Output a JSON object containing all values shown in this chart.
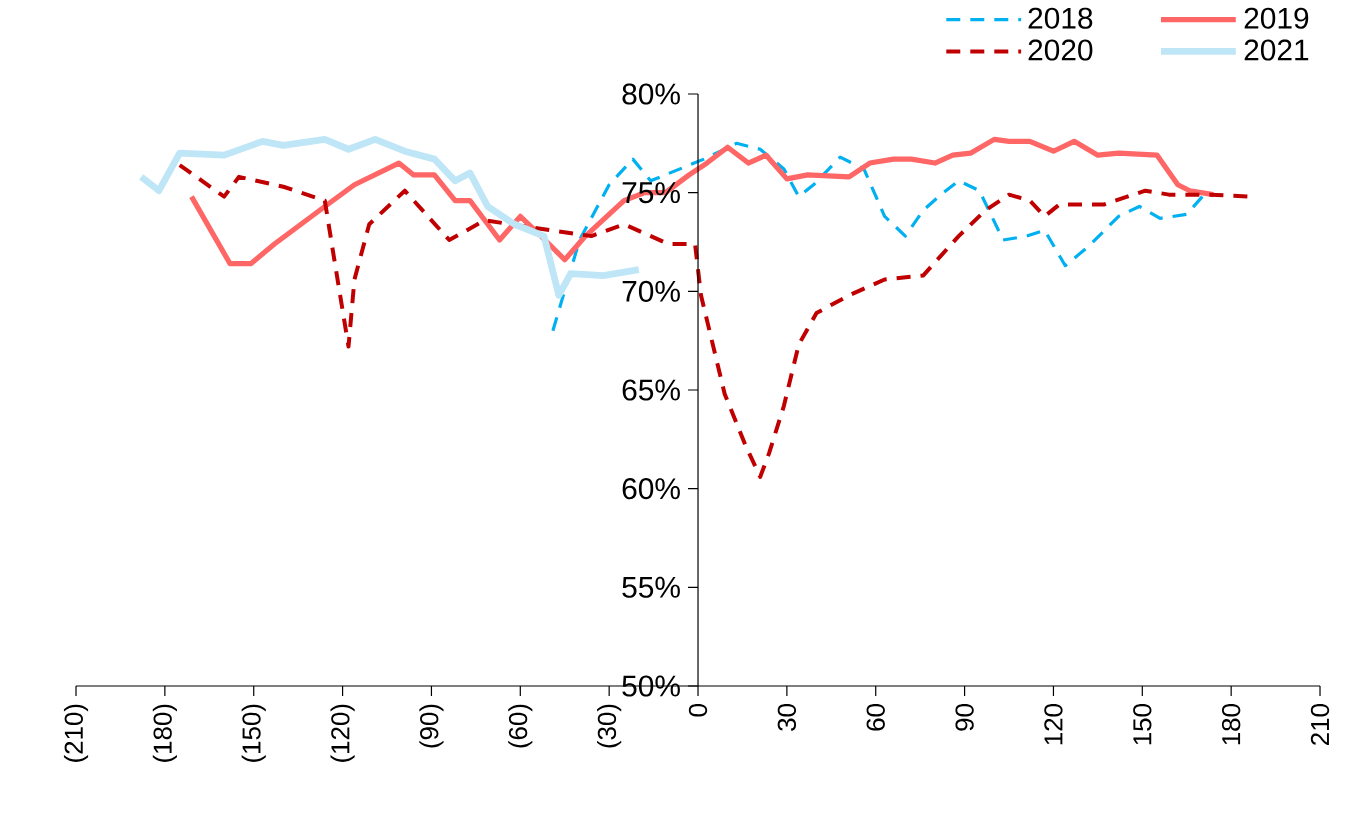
{
  "chart_data": {
    "type": "line",
    "xlim": [
      -210,
      210
    ],
    "ylim": [
      50,
      80
    ],
    "xticks": [
      {
        "value": -210,
        "label": "(210)"
      },
      {
        "value": -180,
        "label": "(180)"
      },
      {
        "value": -150,
        "label": "(150)"
      },
      {
        "value": -120,
        "label": "(120)"
      },
      {
        "value": -90,
        "label": "(90)"
      },
      {
        "value": -60,
        "label": "(60)"
      },
      {
        "value": -30,
        "label": "(30)"
      },
      0,
      30,
      60,
      90,
      120,
      150,
      180,
      210
    ],
    "yticks": [
      {
        "value": 50,
        "label": "50%"
      },
      {
        "value": 55,
        "label": "55%"
      },
      {
        "value": 60,
        "label": "60%"
      },
      {
        "value": 65,
        "label": "65%"
      },
      {
        "value": 70,
        "label": "70%"
      },
      {
        "value": 75,
        "label": "75%"
      },
      {
        "value": 80,
        "label": "80%"
      }
    ],
    "legend": "top right",
    "grid": false,
    "marker": "none",
    "series": [
      {
        "name": "2018",
        "color": "#00b0f0",
        "line_style": "dashed",
        "x": [
          -49,
          -40,
          -30,
          -22,
          -16,
          2,
          13,
          21,
          29,
          34,
          39,
          48,
          56,
          63,
          70,
          76,
          82,
          88,
          95,
          103,
          111,
          117,
          124,
          132,
          142,
          149,
          156,
          165,
          172
        ],
        "values": [
          68.0,
          72.6,
          75.4,
          76.7,
          75.6,
          76.7,
          77.5,
          77.2,
          76.2,
          74.8,
          75.4,
          76.8,
          76.2,
          73.8,
          72.8,
          74.1,
          74.9,
          75.6,
          75.1,
          72.6,
          72.8,
          73.1,
          71.3,
          72.3,
          73.8,
          74.3,
          73.7,
          73.9,
          75.1
        ]
      },
      {
        "name": "2019",
        "color": "#ff6666",
        "line_style": "solid",
        "x": [
          -171,
          -158,
          -151,
          -143,
          -126,
          -116,
          -101,
          -96,
          -89,
          -82,
          -77,
          -67,
          -60,
          -53,
          -45,
          -38,
          -25,
          -18,
          -11,
          -3,
          3,
          10,
          17,
          23,
          30,
          37,
          51,
          58,
          66,
          72,
          80,
          86,
          92,
          100,
          105,
          112,
          120,
          127,
          135,
          142,
          155,
          162,
          166,
          174
        ],
        "values": [
          74.8,
          71.4,
          71.4,
          72.4,
          74.3,
          75.4,
          76.5,
          75.9,
          75.9,
          74.6,
          74.6,
          72.6,
          73.8,
          72.8,
          71.6,
          72.8,
          74.6,
          75.0,
          75.0,
          75.9,
          76.5,
          77.3,
          76.5,
          76.9,
          75.7,
          75.9,
          75.8,
          76.5,
          76.7,
          76.7,
          76.5,
          76.9,
          77.0,
          77.7,
          77.6,
          77.6,
          77.1,
          77.6,
          76.9,
          77.0,
          76.9,
          75.4,
          75.1,
          74.9
        ]
      },
      {
        "name": "2020",
        "color": "#c00000",
        "line_style": "dashed",
        "x": [
          -175,
          -160,
          -155,
          -140,
          -126,
          -123,
          -118,
          -116,
          -111,
          -99,
          -84,
          -72,
          -50,
          -36,
          -25,
          -10,
          -1,
          1,
          9,
          16,
          21,
          24,
          29,
          34,
          40,
          51,
          63,
          76,
          88,
          97,
          105,
          112,
          117,
          122,
          137,
          151,
          159,
          173,
          186
        ],
        "values": [
          76.4,
          74.8,
          75.8,
          75.3,
          74.6,
          71.8,
          67.2,
          70.6,
          73.4,
          75.1,
          72.6,
          73.6,
          73.1,
          72.8,
          73.4,
          72.4,
          72.4,
          69.8,
          64.8,
          62.2,
          60.6,
          61.8,
          64.2,
          67.3,
          68.9,
          69.8,
          70.6,
          70.8,
          72.8,
          74.1,
          74.9,
          74.6,
          73.8,
          74.4,
          74.4,
          75.1,
          74.9,
          74.9,
          74.8
        ]
      },
      {
        "name": "2021",
        "color": "#bfe6f7",
        "line_style": "solid",
        "x": [
          -188,
          -182,
          -175,
          -160,
          -147,
          -140,
          -126,
          -118,
          -109,
          -99,
          -89,
          -82,
          -77,
          -71,
          -62,
          -52,
          -47,
          -43,
          -32,
          -20
        ],
        "values": [
          75.8,
          75.1,
          77.0,
          76.9,
          77.6,
          77.4,
          77.7,
          77.2,
          77.7,
          77.1,
          76.7,
          75.6,
          76.0,
          74.3,
          73.4,
          72.8,
          69.8,
          70.9,
          70.8,
          71.1
        ]
      }
    ]
  }
}
